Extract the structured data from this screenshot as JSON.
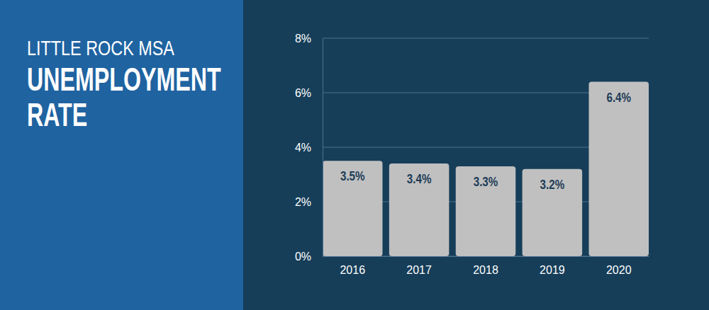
{
  "chart_data": {
    "type": "bar",
    "subtitle": "LITTLE ROCK MSA",
    "title": "UNEMPLOYMENT RATE",
    "categories": [
      "2016",
      "2017",
      "2018",
      "2019",
      "2020"
    ],
    "values": [
      3.5,
      3.4,
      3.3,
      3.2,
      6.4
    ],
    "value_labels": [
      "3.5%",
      "3.4%",
      "3.3%",
      "3.2%",
      "6.4%"
    ],
    "color": "#c0c0c0",
    "ylim": [
      0,
      8
    ],
    "yticks": [
      {
        "value": 0,
        "label": "0%"
      },
      {
        "value": 2,
        "label": "2%"
      },
      {
        "value": 4,
        "label": "4%"
      },
      {
        "value": 6,
        "label": "6%"
      },
      {
        "value": 8,
        "label": "8%"
      }
    ],
    "grid": true,
    "data_labels": true
  }
}
